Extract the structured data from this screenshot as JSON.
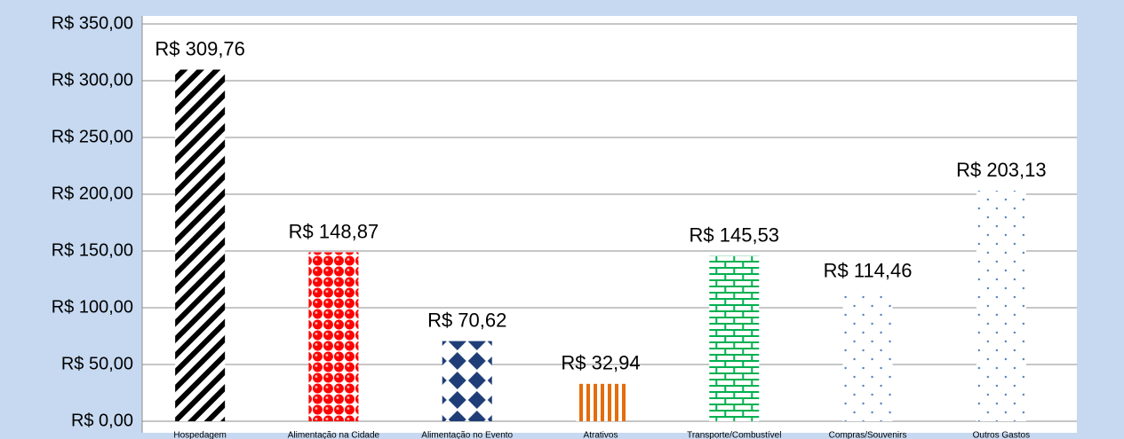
{
  "chart_data": {
    "type": "bar",
    "categories": [
      "Hospedagem",
      "Alimentação na Cidade",
      "Alimentação no Evento",
      "Atrativos",
      "Transporte/Combustível",
      "Compras/Souvenirs",
      "Outros Gastos"
    ],
    "values": [
      309.76,
      148.87,
      70.62,
      32.94,
      145.53,
      114.46,
      203.13
    ],
    "value_labels": [
      "R$ 309,76",
      "R$ 148,87",
      "R$ 70,62",
      "R$ 32,94",
      "R$ 145,53",
      "R$ 114,46",
      "R$ 203,13"
    ],
    "colors": [
      "#000000",
      "#ff0000",
      "#1f3e78",
      "#e46c0a",
      "#00b050",
      "#4f81bd",
      "#4f81bd"
    ],
    "patterns": [
      "diagonal",
      "circles",
      "diamonds",
      "vertical",
      "bricks",
      "dots",
      "dots"
    ],
    "ylim": [
      0,
      350
    ],
    "yticks": [
      {
        "value": 0,
        "label": "R$ 0,00"
      },
      {
        "value": 50,
        "label": "R$ 50,00"
      },
      {
        "value": 100,
        "label": "R$ 100,00"
      },
      {
        "value": 150,
        "label": "R$ 150,00"
      },
      {
        "value": 200,
        "label": "R$ 200,00"
      },
      {
        "value": 250,
        "label": "R$ 250,00"
      },
      {
        "value": 300,
        "label": "R$ 300,00"
      },
      {
        "value": 350,
        "label": "R$ 350,00"
      }
    ],
    "grid": true
  }
}
